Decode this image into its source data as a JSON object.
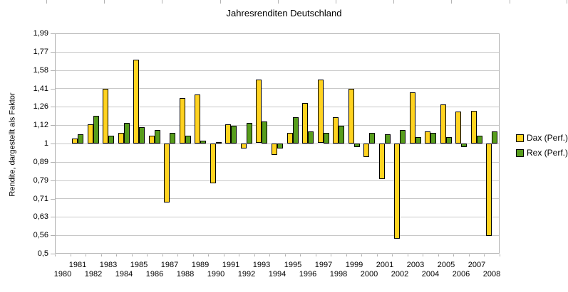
{
  "title": "Jahresrenditen Deutschland",
  "y_axis": {
    "label": "Rendite, dargestellt als Faktor",
    "tick_labels": [
      "1,99",
      "1,77",
      "1,58",
      "1,41",
      "1,26",
      "1,12",
      "1",
      "0,89",
      "0,79",
      "0,71",
      "0,63",
      "0,56",
      "0,5"
    ],
    "scale": "log"
  },
  "legend": {
    "items": [
      {
        "label": "Dax (Perf.)",
        "color": "#FFD320"
      },
      {
        "label": "Rex (Perf.)",
        "color": "#579D1C"
      }
    ]
  },
  "colors": {
    "dax": "#FFD320",
    "rex": "#579D1C",
    "bar_border": "#000000",
    "gridline": "#c8c8c8",
    "axis": "#b0b0b0"
  },
  "chart_data": {
    "type": "bar",
    "title": "Jahresrenditen Deutschland",
    "xlabel": "",
    "ylabel": "Rendite, dargestellt als Faktor",
    "yscale": "log",
    "ylim": [
      0.501,
      1.995
    ],
    "baseline": 1.0,
    "grid": true,
    "legend_position": "right",
    "ytick_values": [
      1.99,
      1.77,
      1.58,
      1.41,
      1.26,
      1.12,
      1.0,
      0.89,
      0.79,
      0.71,
      0.63,
      0.56,
      0.5
    ],
    "categories": [
      1980,
      1981,
      1982,
      1983,
      1984,
      1985,
      1986,
      1987,
      1988,
      1989,
      1990,
      1991,
      1992,
      1993,
      1994,
      1995,
      1996,
      1997,
      1998,
      1999,
      2000,
      2001,
      2002,
      2003,
      2004,
      2005,
      2006,
      2007,
      2008
    ],
    "series": [
      {
        "name": "Dax (Perf.)",
        "color": "#FFD320",
        "values": [
          null,
          1.03,
          1.13,
          1.41,
          1.07,
          1.69,
          1.05,
          0.69,
          1.33,
          1.36,
          0.78,
          1.13,
          0.97,
          1.49,
          0.93,
          1.07,
          1.29,
          1.49,
          1.18,
          1.41,
          0.92,
          0.8,
          0.55,
          1.38,
          1.08,
          1.28,
          1.22,
          1.23,
          0.56
        ]
      },
      {
        "name": "Rex (Perf.)",
        "color": "#579D1C",
        "values": [
          null,
          1.06,
          1.19,
          1.05,
          1.14,
          1.11,
          1.09,
          1.07,
          1.05,
          1.02,
          1.01,
          1.12,
          1.14,
          1.15,
          0.97,
          1.18,
          1.08,
          1.07,
          1.12,
          0.98,
          1.07,
          1.06,
          1.09,
          1.04,
          1.07,
          1.04,
          0.98,
          1.05,
          1.08
        ]
      }
    ]
  }
}
